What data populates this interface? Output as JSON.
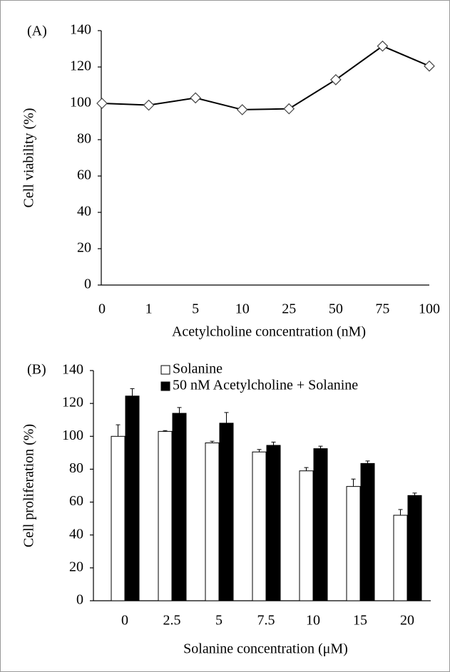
{
  "chart_data": [
    {
      "type": "line",
      "panel_label": "(A)",
      "y_label": "Cell viability (%)",
      "x_label": "Acetylcholine concentration (nM)",
      "categories": [
        "0",
        "1",
        "5",
        "10",
        "25",
        "50",
        "75",
        "100"
      ],
      "values": [
        100,
        99,
        103,
        96.5,
        97,
        113,
        131.5,
        120.5
      ],
      "color": "#000000",
      "ylim": [
        0,
        140
      ],
      "yticks": [
        0,
        20,
        40,
        60,
        80,
        100,
        120,
        140
      ]
    },
    {
      "type": "bar",
      "panel_label": "(B)",
      "y_label": "Cell proliferation (%)",
      "x_label": "Solanine concentration (μM)",
      "categories": [
        "0",
        "2.5",
        "5",
        "7.5",
        "10",
        "15",
        "20"
      ],
      "series": [
        {
          "name": "Solanine",
          "color": "#ffffff",
          "values": [
            100,
            103,
            96,
            90.5,
            79,
            69.5,
            52
          ],
          "errors": [
            7,
            0.5,
            1,
            1.5,
            2,
            4.5,
            3.5
          ]
        },
        {
          "name": "50 nM Acetylcholine + Solanine",
          "color": "#000000",
          "values": [
            124.5,
            114,
            108,
            94.5,
            92.5,
            83.5,
            64
          ],
          "errors": [
            4.5,
            3.5,
            6.5,
            2,
            1.5,
            1.5,
            1.5
          ]
        }
      ],
      "ylim": [
        0,
        140
      ],
      "yticks": [
        0,
        20,
        40,
        60,
        80,
        100,
        120,
        140
      ]
    }
  ]
}
